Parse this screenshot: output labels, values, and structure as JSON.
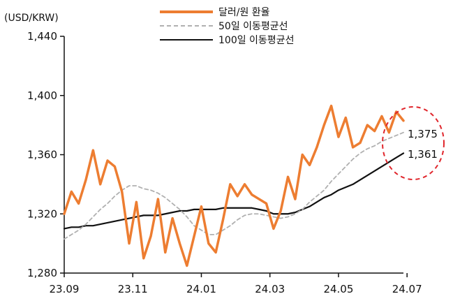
{
  "chart_data": {
    "type": "line",
    "unit_label": "(USD/KRW)",
    "ylim": [
      1280,
      1440
    ],
    "yticks": [
      "1,440",
      "1,400",
      "1,360",
      "1,320",
      "1,280"
    ],
    "ytick_values": [
      1440,
      1400,
      1360,
      1320,
      1280
    ],
    "xlim": [
      0,
      47
    ],
    "xticks": [
      "23.09",
      "23.11",
      "24.01",
      "24.03",
      "24.05",
      "24.07"
    ],
    "xtick_positions": [
      0,
      9.5,
      19,
      28.5,
      38,
      47.5
    ],
    "end_labels": [
      "1,375",
      "1,361"
    ],
    "legend_position": "top",
    "series": [
      {
        "name": "달러/원 환율",
        "color": "#ed7d31",
        "style": "solid",
        "values": [
          1320,
          1320,
          1335,
          1333,
          1330,
          1328,
          1325,
          1330,
          1340,
          1345,
          1350,
          1352,
          1357,
          1363,
          1355,
          1340,
          1350,
          1345,
          1330,
          1335,
          1345,
          1350,
          1355,
          1356,
          1358,
          1348,
          1353,
          1358,
          1355,
          1350,
          1345,
          1350,
          1345,
          1330,
          1320,
          1310,
          1300,
          1295,
          1305,
          1315,
          1325,
          1328,
          1318,
          1310,
          1300,
          1295,
          1290,
          1300,
          1310,
          1320,
          1325,
          1315,
          1305,
          1300,
          1290,
          1285,
          1290,
          1300,
          1310,
          1305,
          1300,
          1295,
          1290,
          1305,
          1315,
          1310,
          1300,
          1295,
          1290,
          1295,
          1305,
          1312,
          1300,
          1290,
          1285,
          1290,
          1300,
          1310,
          1315,
          1310,
          1300,
          1290,
          1288,
          1295,
          1300,
          1305,
          1310,
          1315,
          1310,
          1305,
          1300,
          1298,
          1302,
          1308,
          1315,
          1320,
          1325,
          1322,
          1318,
          1313,
          1310,
          1305,
          1300,
          1295,
          1300,
          1308,
          1315,
          1320,
          1325,
          1330,
          1335,
          1345,
          1340,
          1335,
          1335,
          1340,
          1335,
          1330,
          1327,
          1325,
          1322,
          1320,
          1324,
          1328,
          1333,
          1338,
          1340,
          1335,
          1330,
          1335,
          1340,
          1338,
          1333,
          1330,
          1328,
          1332,
          1325,
          1330,
          1335,
          1330,
          1328,
          1330,
          1333,
          1335,
          1330,
          1328,
          1325,
          1320,
          1318,
          1320,
          1325,
          1335,
          1345,
          1340,
          1335,
          1330,
          1325,
          1320,
          1322,
          1328,
          1322,
          1318,
          1315,
          1320,
          1322,
          1318,
          1312,
          1310,
          1315,
          1320,
          1325,
          1330,
          1335,
          1340,
          1345,
          1350,
          1355,
          1352,
          1350,
          1355,
          1360,
          1358,
          1355,
          1350,
          1352,
          1355,
          1360,
          1365,
          1362,
          1360,
          1355,
          1350,
          1355,
          1360,
          1365,
          1370,
          1375,
          1380,
          1385,
          1390,
          1394,
          1385,
          1380,
          1378,
          1375,
          1372,
          1370,
          1375,
          1380,
          1385,
          1380,
          1375,
          1370,
          1368,
          1365,
          1362,
          1365,
          1370,
          1375,
          1380,
          1385,
          1375,
          1365,
          1355,
          1350,
          1355,
          1360,
          1365,
          1370,
          1372,
          1375,
          1378,
          1380,
          1382,
          1378,
          1375,
          1372,
          1375,
          1380,
          1385,
          1387,
          1385,
          1382,
          1383,
          1384,
          1380,
          1378,
          1375,
          1377,
          1380,
          1382,
          1385
        ],
        "plot_values": [
          1320,
          1335,
          1327,
          1343,
          1363,
          1340,
          1356,
          1352,
          1335,
          1300,
          1328,
          1290,
          1305,
          1330,
          1294,
          1317,
          1300,
          1285,
          1305,
          1325,
          1300,
          1294,
          1316,
          1340,
          1332,
          1340,
          1333,
          1330,
          1327,
          1310,
          1322,
          1345,
          1330,
          1360,
          1353,
          1365,
          1380,
          1393,
          1372,
          1385,
          1365,
          1368,
          1380,
          1376,
          1386,
          1375,
          1389,
          1383
        ]
      },
      {
        "name": "50일 이동평균선",
        "color": "#b0b0b0",
        "style": "dashed",
        "values": [
          1303,
          1306,
          1309,
          1313,
          1318,
          1323,
          1327,
          1332,
          1336,
          1339,
          1339,
          1337,
          1336,
          1334,
          1331,
          1327,
          1323,
          1318,
          1312,
          1309,
          1306,
          1306,
          1309,
          1312,
          1316,
          1319,
          1320,
          1320,
          1319,
          1318,
          1317,
          1318,
          1320,
          1323,
          1328,
          1332,
          1336,
          1342,
          1347,
          1352,
          1357,
          1361,
          1364,
          1366,
          1369,
          1371,
          1373,
          1375
        ]
      },
      {
        "name": "100일 이동평균선",
        "color": "#111111",
        "style": "solid",
        "values": [
          1310,
          1311,
          1311,
          1312,
          1312,
          1313,
          1314,
          1315,
          1316,
          1317,
          1318,
          1319,
          1319,
          1319,
          1320,
          1321,
          1322,
          1322,
          1323,
          1323,
          1323,
          1323,
          1324,
          1324,
          1324,
          1324,
          1324,
          1323,
          1322,
          1320,
          1320,
          1320,
          1321,
          1323,
          1325,
          1328,
          1331,
          1333,
          1336,
          1338,
          1340,
          1343,
          1346,
          1349,
          1352,
          1355,
          1358,
          1361
        ]
      }
    ]
  }
}
